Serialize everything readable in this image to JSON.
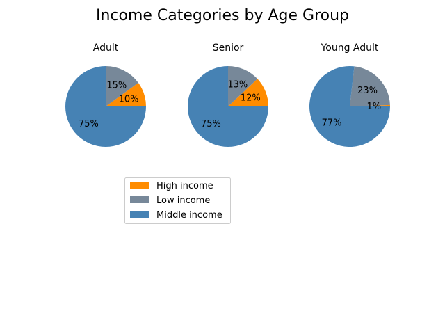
{
  "title": "Income Categories by Age Group",
  "colors": {
    "High income": "#ff8c00",
    "Low income": "#778899",
    "Middle income": "#4682b4"
  },
  "legend": {
    "placement": "lower-left",
    "entries": [
      "High income",
      "Low income",
      "Middle income"
    ]
  },
  "chart_data": [
    {
      "type": "pie",
      "title": "Adult",
      "slices": [
        {
          "label": "High income",
          "value": 10,
          "display": "10%"
        },
        {
          "label": "Low income",
          "value": 15,
          "display": "15%"
        },
        {
          "label": "Middle income",
          "value": 75,
          "display": "75%"
        }
      ]
    },
    {
      "type": "pie",
      "title": "Senior",
      "slices": [
        {
          "label": "High income",
          "value": 12,
          "display": "12%"
        },
        {
          "label": "Low income",
          "value": 13,
          "display": "13%"
        },
        {
          "label": "Middle income",
          "value": 75,
          "display": "75%"
        }
      ]
    },
    {
      "type": "pie",
      "title": "Young Adult",
      "slices": [
        {
          "label": "High income",
          "value": 0.6,
          "display": "1%"
        },
        {
          "label": "Low income",
          "value": 22.6,
          "display": "23%"
        },
        {
          "label": "Middle income",
          "value": 76.8,
          "display": "77%"
        }
      ]
    }
  ]
}
